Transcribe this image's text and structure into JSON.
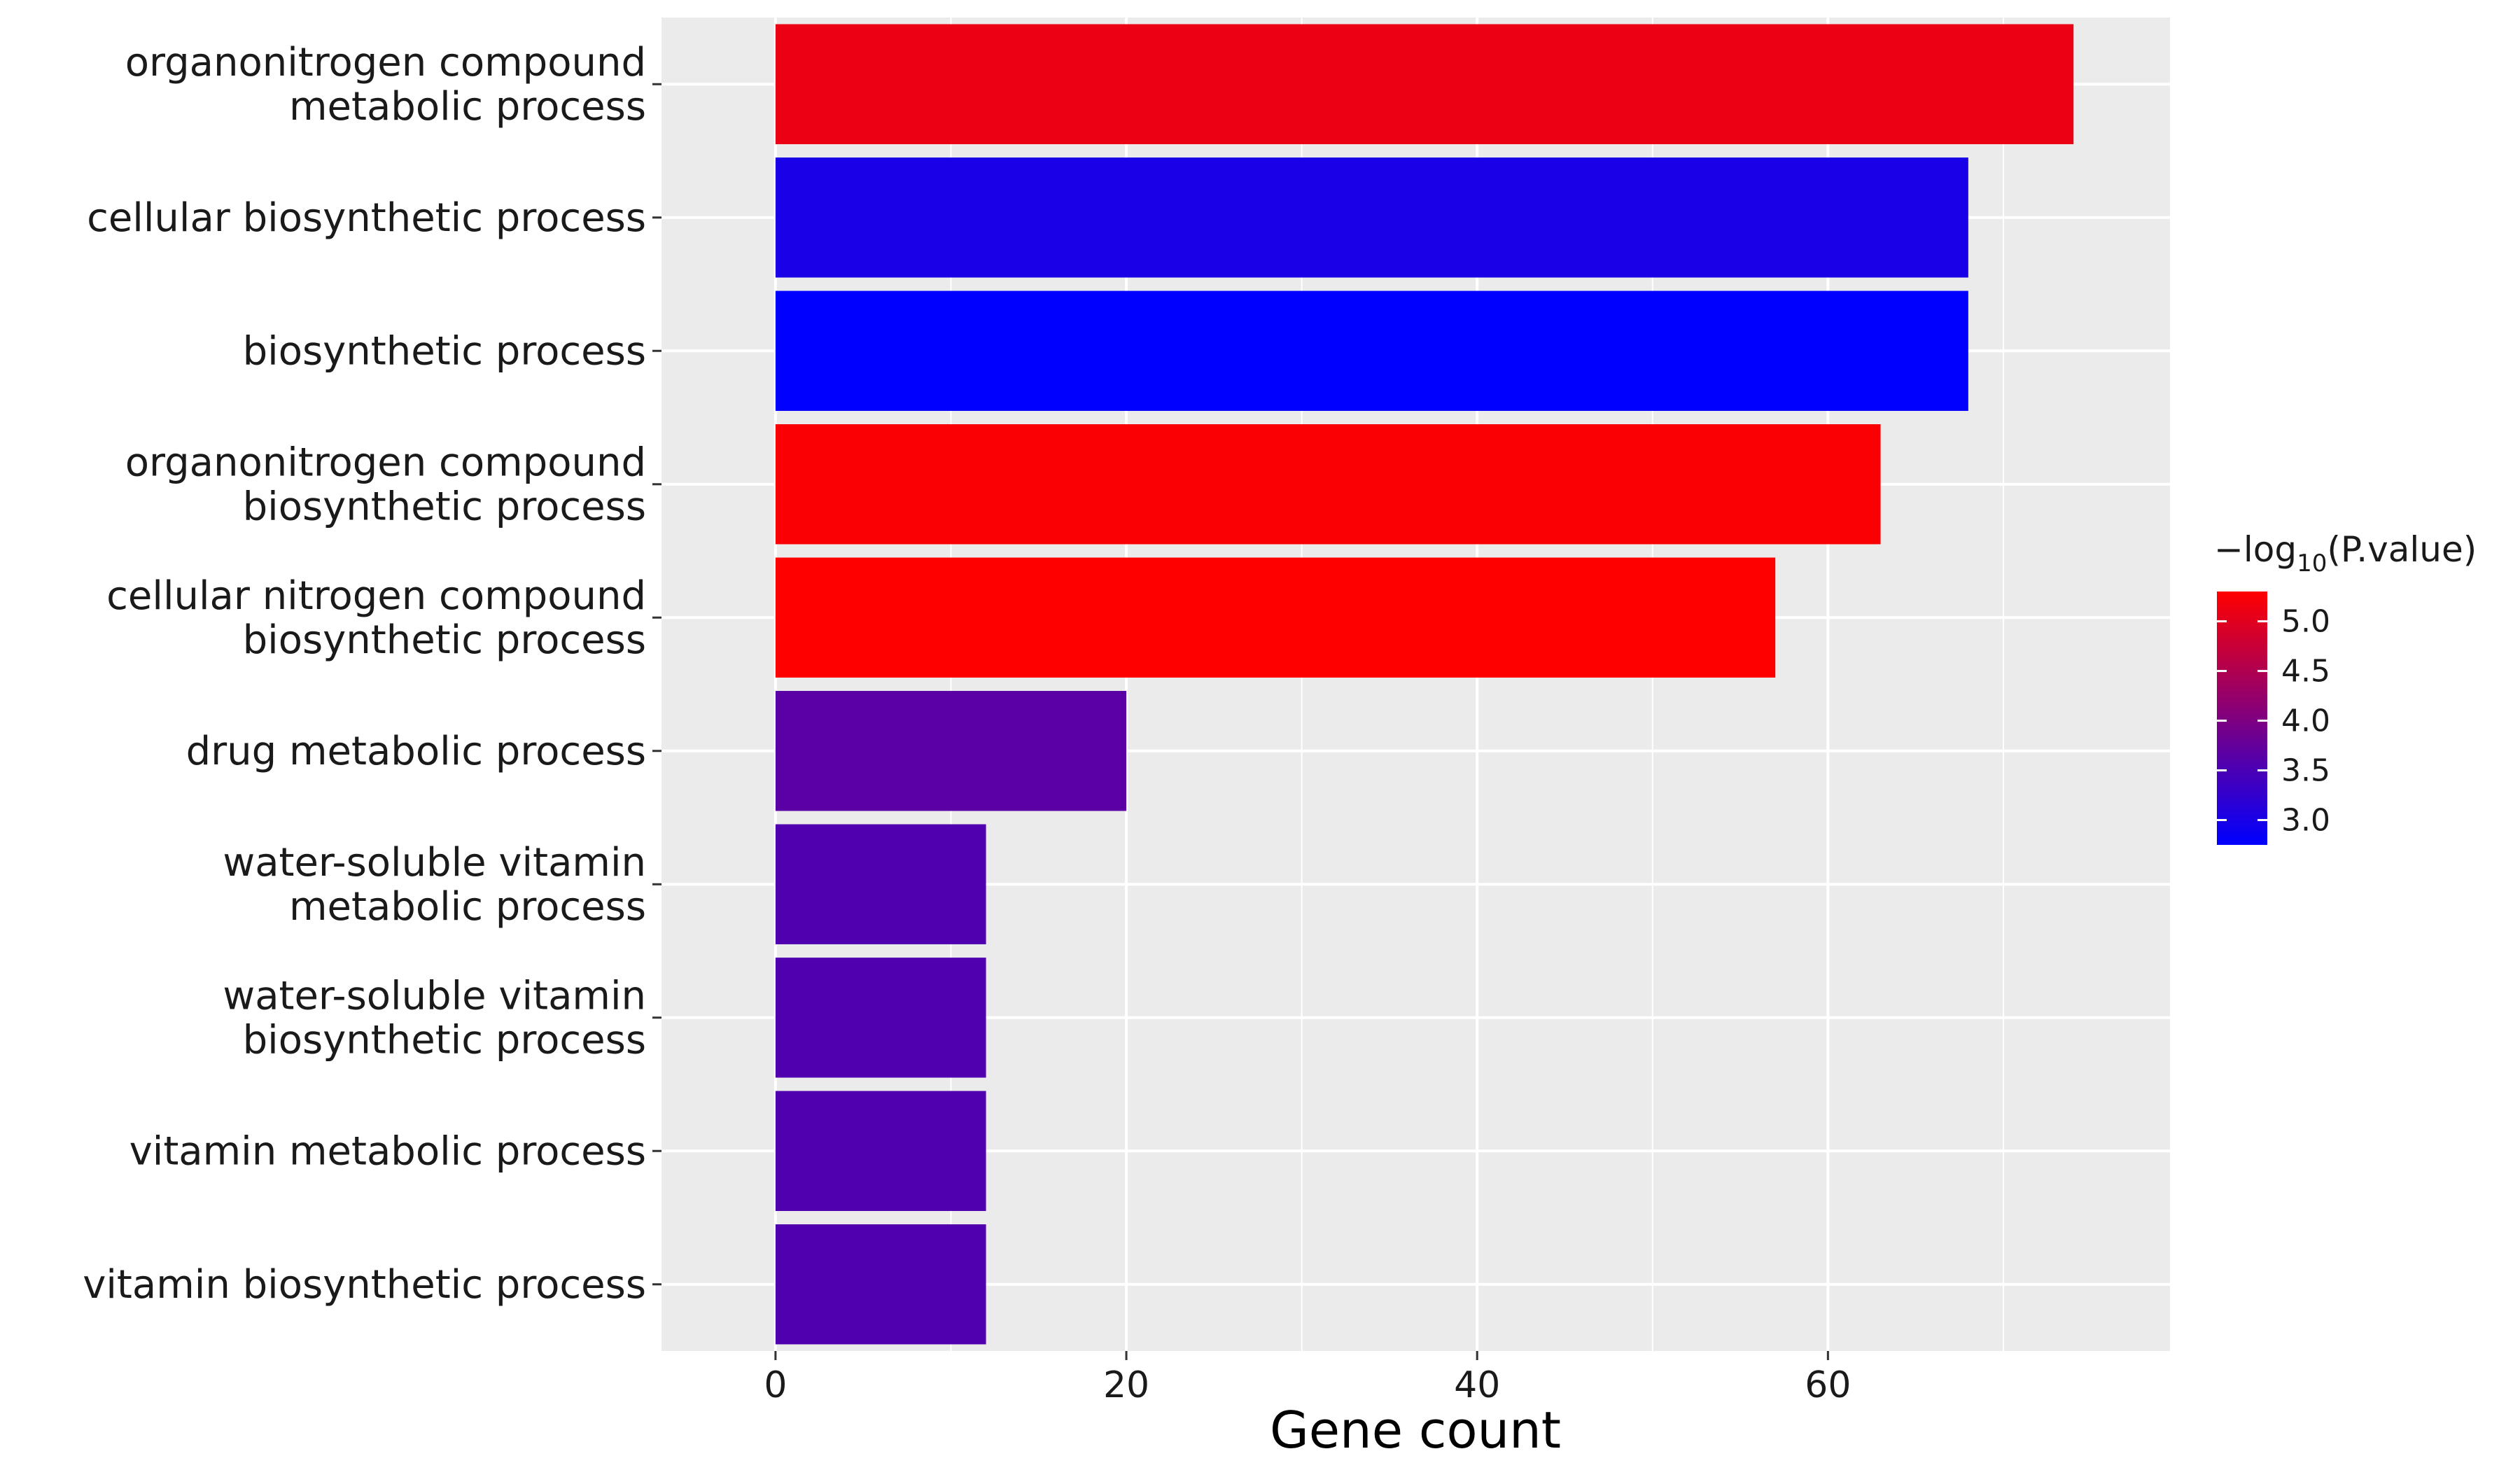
{
  "chart_data": {
    "type": "bar",
    "orientation": "horizontal",
    "xlabel": "Gene count",
    "ylabel": "",
    "title": "",
    "xlim": [
      -6.5,
      79.5
    ],
    "xticks": [
      0,
      20,
      40,
      60
    ],
    "grid": true,
    "categories": [
      [
        "organonitrogen compound",
        "metabolic process"
      ],
      [
        "cellular biosynthetic process"
      ],
      [
        "biosynthetic process"
      ],
      [
        "organonitrogen compound",
        "biosynthetic process"
      ],
      [
        "cellular nitrogen compound",
        "biosynthetic process"
      ],
      [
        "drug metabolic process"
      ],
      [
        "water-soluble vitamin",
        "metabolic process"
      ],
      [
        "water-soluble vitamin",
        "biosynthetic process"
      ],
      [
        "vitamin metabolic process"
      ],
      [
        "vitamin biosynthetic process"
      ]
    ],
    "values": [
      74,
      68,
      68,
      63,
      57,
      20,
      12,
      12,
      12,
      12
    ],
    "color_values": [
      5.1,
      3.0,
      2.75,
      5.25,
      5.3,
      3.65,
      3.55,
      3.55,
      3.55,
      3.55
    ],
    "legend": {
      "title_prefix": "−log",
      "title_sub": "10",
      "title_suffix": "(P.value)",
      "placement": "right",
      "ticks": [
        5.0,
        4.5,
        4.0,
        3.5,
        3.0
      ],
      "tick_labels": [
        "5.0",
        "4.5",
        "4.0",
        "3.5",
        "3.0"
      ],
      "range": [
        2.75,
        5.3
      ],
      "low_color": "#0000FF",
      "high_color": "#FF0000"
    }
  }
}
